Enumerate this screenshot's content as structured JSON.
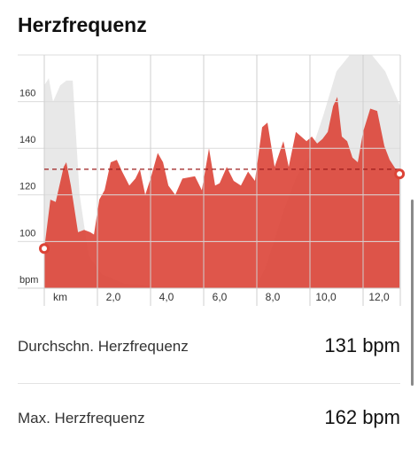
{
  "title": "Herzfrequenz",
  "chart_data": {
    "type": "area",
    "xlim": [
      0,
      13.4
    ],
    "xticks": [
      {
        "value": 0,
        "label": "km"
      },
      {
        "value": 2,
        "label": "2,0"
      },
      {
        "value": 4,
        "label": "4,0"
      },
      {
        "value": 6,
        "label": "6,0"
      },
      {
        "value": 8,
        "label": "8,0"
      },
      {
        "value": 10,
        "label": "10,0"
      },
      {
        "value": 12,
        "label": "12,0"
      }
    ],
    "ylim": [
      80,
      180
    ],
    "yticks": [
      {
        "value": 80,
        "label": "bpm"
      },
      100,
      120,
      140,
      160
    ],
    "grid": true,
    "average": 131,
    "series": [
      {
        "color": "#e8e8e8",
        "x": [
          0,
          0.17,
          0.33,
          0.6,
          0.83,
          1.07,
          1.33,
          1.67,
          2.17,
          3.0,
          4.0,
          8.0,
          8.33,
          8.67,
          9.0,
          9.5,
          10.0,
          10.5,
          11.0,
          11.5,
          12.33,
          12.83,
          13.4
        ],
        "values": [
          167,
          170,
          160,
          167,
          169,
          169,
          120,
          94,
          86,
          82,
          81,
          81,
          89,
          101,
          113,
          128,
          137,
          154,
          173,
          180,
          180,
          173,
          158
        ]
      },
      {
        "color": "#dc4437",
        "x": [
          0,
          0.23,
          0.43,
          0.73,
          0.83,
          1.0,
          1.27,
          1.5,
          1.73,
          1.87,
          2.07,
          2.27,
          2.5,
          2.73,
          2.93,
          3.2,
          3.43,
          3.6,
          3.8,
          4.0,
          4.27,
          4.47,
          4.67,
          4.93,
          5.2,
          5.67,
          5.93,
          6.2,
          6.43,
          6.6,
          6.87,
          7.13,
          7.4,
          7.67,
          7.93,
          8.2,
          8.4,
          8.67,
          9.0,
          9.2,
          9.47,
          9.67,
          9.87,
          10.07,
          10.27,
          10.47,
          10.67,
          10.87,
          11.03,
          11.2,
          11.4,
          11.6,
          11.8,
          12.0,
          12.27,
          12.53,
          12.8,
          13.0,
          13.23,
          13.37
        ],
        "values": [
          97,
          118,
          117,
          132,
          134,
          124,
          104,
          105,
          104,
          103,
          118,
          122,
          134,
          135,
          130,
          124,
          127,
          131,
          120,
          127,
          138,
          134,
          124,
          120,
          127,
          128,
          122,
          140,
          124,
          125,
          132,
          126,
          124,
          130,
          126,
          149,
          151,
          132,
          143,
          132,
          147,
          145,
          143,
          145,
          142,
          144,
          147,
          158,
          162,
          145,
          143,
          136,
          134,
          147,
          157,
          156,
          141,
          135,
          131,
          129
        ]
      }
    ]
  },
  "stats": [
    {
      "label": "Durchschn. Herzfrequenz",
      "value": "131 bpm"
    },
    {
      "label": "Max. Herzfrequenz",
      "value": "162 bpm"
    }
  ]
}
